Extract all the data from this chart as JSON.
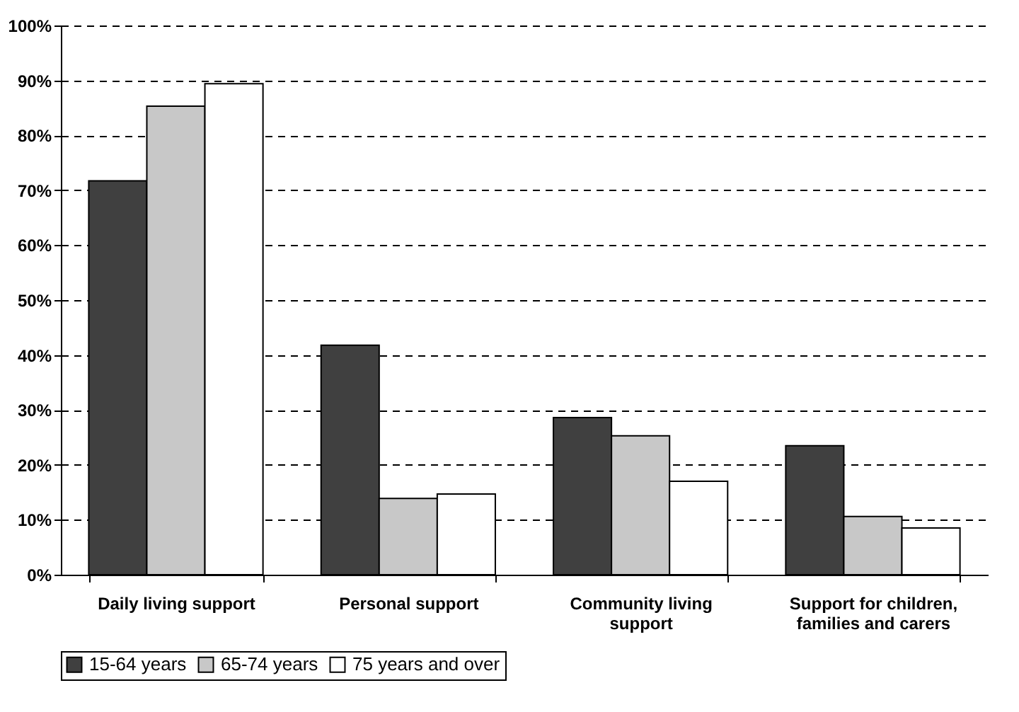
{
  "chart_data": {
    "type": "bar",
    "categories": [
      "Daily living support",
      "Personal support",
      "Community living support",
      "Support for children, families and carers"
    ],
    "series": [
      {
        "name": "15-64 years",
        "color": "#404040",
        "values": [
          71.7,
          41.8,
          28.6,
          23.5
        ]
      },
      {
        "name": "65-74 years",
        "color": "#c8c8c8",
        "values": [
          85.3,
          13.9,
          25.3,
          10.6
        ]
      },
      {
        "name": "75 years and over",
        "color": "#ffffff",
        "values": [
          89.4,
          14.7,
          17.0,
          8.5
        ]
      }
    ],
    "ylim": [
      0,
      100
    ],
    "yticks": [
      {
        "value": 0,
        "label": "0%"
      },
      {
        "value": 10,
        "label": "10%"
      },
      {
        "value": 20,
        "label": "20%"
      },
      {
        "value": 30,
        "label": "30%"
      },
      {
        "value": 40,
        "label": "40%"
      },
      {
        "value": 50,
        "label": "50%"
      },
      {
        "value": 60,
        "label": "60%"
      },
      {
        "value": 70,
        "label": "70%"
      },
      {
        "value": 80,
        "label": "80%"
      },
      {
        "value": 90,
        "label": "90%"
      },
      {
        "value": 100,
        "label": "100%"
      }
    ],
    "grid": "y",
    "legend": "bottom"
  }
}
